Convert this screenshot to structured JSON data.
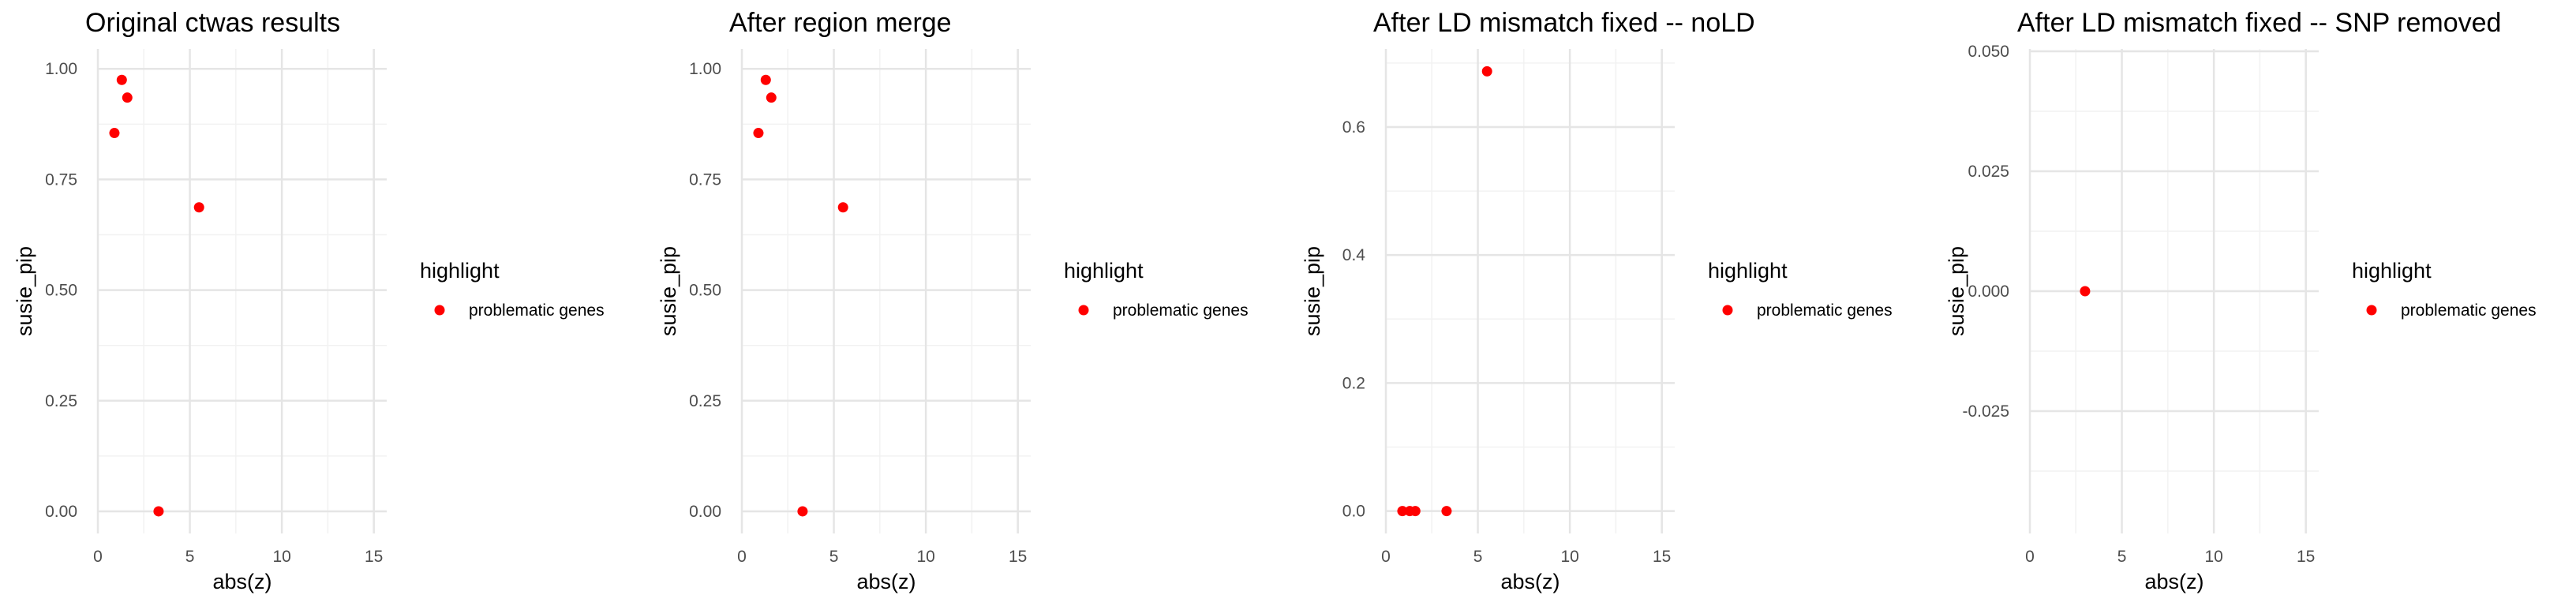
{
  "chart_data": [
    {
      "type": "scatter",
      "title": "Original ctwas results",
      "xlabel": "abs(z)",
      "ylabel": "susie_pip",
      "xlim": [
        0,
        15.7
      ],
      "ylim": [
        -0.05,
        1.045
      ],
      "xticks": [
        0,
        5,
        10,
        15
      ],
      "xtick_labels": [
        "0",
        "5",
        "10",
        "15"
      ],
      "yticks": [
        0,
        0.25,
        0.5,
        0.75,
        1.0
      ],
      "ytick_labels": [
        "0.00",
        "0.25",
        "0.50",
        "0.75",
        "1.00"
      ],
      "legend": {
        "title": "highlight",
        "label": "problematic genes",
        "position": "right"
      },
      "series": [
        {
          "name": "problematic genes",
          "color": "#ff0000",
          "x": [
            1.3,
            1.6,
            0.9,
            5.5,
            3.3
          ],
          "y": [
            0.975,
            0.935,
            0.855,
            0.687,
            0.0
          ]
        }
      ]
    },
    {
      "type": "scatter",
      "title": "After region merge",
      "xlabel": "abs(z)",
      "ylabel": "susie_pip",
      "xlim": [
        0,
        15.7
      ],
      "ylim": [
        -0.05,
        1.045
      ],
      "xticks": [
        0,
        5,
        10,
        15
      ],
      "xtick_labels": [
        "0",
        "5",
        "10",
        "15"
      ],
      "yticks": [
        0,
        0.25,
        0.5,
        0.75,
        1.0
      ],
      "ytick_labels": [
        "0.00",
        "0.25",
        "0.50",
        "0.75",
        "1.00"
      ],
      "legend": {
        "title": "highlight",
        "label": "problematic genes",
        "position": "right"
      },
      "series": [
        {
          "name": "problematic genes",
          "color": "#ff0000",
          "x": [
            1.3,
            1.6,
            0.9,
            5.5,
            3.3
          ],
          "y": [
            0.975,
            0.935,
            0.855,
            0.687,
            0.0
          ]
        }
      ]
    },
    {
      "type": "scatter",
      "title": "After LD mismatch fixed -- noLD",
      "xlabel": "abs(z)",
      "ylabel": "susie_pip",
      "xlim": [
        0,
        15.7
      ],
      "ylim": [
        -0.035,
        0.722
      ],
      "xticks": [
        0,
        5,
        10,
        15
      ],
      "xtick_labels": [
        "0",
        "5",
        "10",
        "15"
      ],
      "yticks": [
        0,
        0.2,
        0.4,
        0.6
      ],
      "ytick_labels": [
        "0.0",
        "0.2",
        "0.4",
        "0.6"
      ],
      "legend": {
        "title": "highlight",
        "label": "problematic genes",
        "position": "right"
      },
      "series": [
        {
          "name": "problematic genes",
          "color": "#ff0000",
          "x": [
            5.5,
            0.9,
            1.3,
            1.6,
            3.3
          ],
          "y": [
            0.687,
            0.0,
            0.0,
            0.0,
            0.0
          ]
        }
      ]
    },
    {
      "type": "scatter",
      "title": "After LD mismatch fixed -- SNP removed",
      "xlabel": "abs(z)",
      "ylabel": "susie_pip",
      "xlim": [
        0,
        15.7
      ],
      "ylim": [
        -0.0505,
        0.0505
      ],
      "xticks": [
        0,
        5,
        10,
        15
      ],
      "xtick_labels": [
        "0",
        "5",
        "10",
        "15"
      ],
      "yticks": [
        -0.025,
        0,
        0.025,
        0.05
      ],
      "ytick_labels": [
        "-0.025",
        "0.000",
        "0.025",
        "0.050"
      ],
      "legend": {
        "title": "highlight",
        "label": "problematic genes",
        "position": "right"
      },
      "series": [
        {
          "name": "problematic genes",
          "color": "#ff0000",
          "x": [
            3.0
          ],
          "y": [
            0.0
          ]
        }
      ]
    }
  ]
}
